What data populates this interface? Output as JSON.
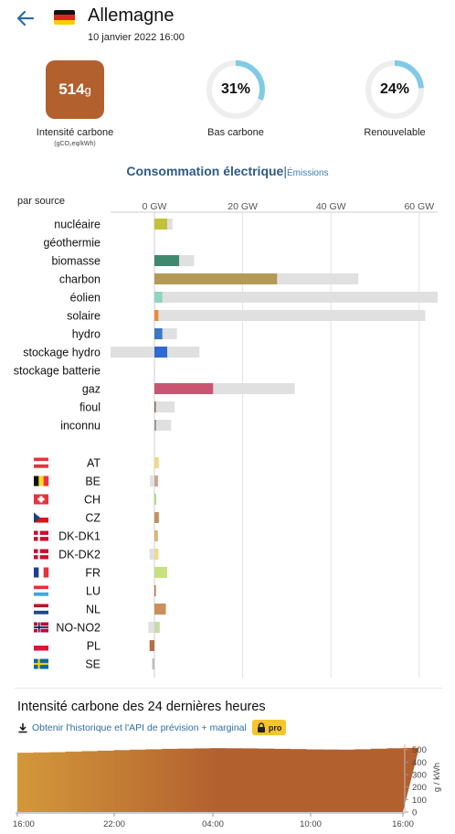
{
  "header": {
    "back_icon": "arrow-left-icon",
    "flag_icon": "flag-germany-icon",
    "country": "Allemagne",
    "datetime": "10 janvier 2022 16:00"
  },
  "stats": {
    "carbon_value": "514",
    "carbon_unit": "g",
    "carbon_label": "Intensité carbone",
    "carbon_unit_label": "(gCO₂eq/kWh)",
    "carbon_color": "#b3602f",
    "low_carbon_value": "31%",
    "low_carbon_fraction": 0.31,
    "low_carbon_label": "Bas carbone",
    "renewable_value": "24%",
    "renewable_fraction": 0.24,
    "renewable_label": "Renouvelable",
    "donut_color": "#7fcbe6",
    "donut_track": "#eeeeee"
  },
  "section": {
    "title": "Consommation électrique",
    "separator": "|",
    "alt_link": "Émissions"
  },
  "chart_data": {
    "type": "bar",
    "title": "Consommation électrique",
    "subtitle": "par source",
    "x_ticks": [
      "0 GW",
      "20 GW",
      "40 GW",
      "60 GW"
    ],
    "x_tick_values": [
      0,
      20,
      40,
      60
    ],
    "xlim": [
      -10.5,
      67
    ],
    "sources": [
      {
        "label": "nucléaire",
        "value": 2.9,
        "capacity": 4.1,
        "color": "#c2c23a"
      },
      {
        "label": "géothermie",
        "value": 0,
        "capacity": 0,
        "color": "#c2a06a"
      },
      {
        "label": "biomasse",
        "value": 5.6,
        "capacity": 9.0,
        "color": "#3f8a6e"
      },
      {
        "label": "charbon",
        "value": 27.8,
        "capacity": 46.2,
        "color": "#b39a55"
      },
      {
        "label": "éolien",
        "value": 1.8,
        "capacity": 67.0,
        "color": "#8ed5c2"
      },
      {
        "label": "solaire",
        "value": 0.9,
        "capacity": 61.4,
        "color": "#f0883a"
      },
      {
        "label": "hydro",
        "value": 1.8,
        "capacity": 5.1,
        "color": "#3c78c4"
      },
      {
        "label": "stockage hydro",
        "value": 2.9,
        "capacity": 10.2,
        "negative_capacity": -10.3,
        "color": "#2e6ad1"
      },
      {
        "label": "stockage batterie",
        "value": 0,
        "capacity": 0.2,
        "color": "#c8b28a"
      },
      {
        "label": "gaz",
        "value": 13.3,
        "capacity": 31.8,
        "color": "#c85672"
      },
      {
        "label": "fioul",
        "value": 0.3,
        "capacity": 4.6,
        "color": "#8a6b52"
      },
      {
        "label": "inconnu",
        "value": 0.4,
        "capacity": 3.8,
        "color": "#9a9a9a"
      }
    ],
    "exchanges": [
      {
        "label": "AT",
        "flag": "flag-austria-icon",
        "value": 1.0,
        "color": "#f1d98a"
      },
      {
        "label": "BE",
        "flag": "flag-belgium-icon",
        "value": 0.8,
        "negative_capacity": -1.0,
        "color": "#c9a58f"
      },
      {
        "label": "CH",
        "flag": "flag-switzerland-icon",
        "value": 0.4,
        "color": "#a8d98a"
      },
      {
        "label": "CZ",
        "flag": "flag-czech-icon",
        "value": 1.0,
        "color": "#c4915e"
      },
      {
        "label": "DK-DK1",
        "flag": "flag-denmark-icon",
        "value": 0.8,
        "color": "#d7b77c"
      },
      {
        "label": "DK-DK2",
        "flag": "flag-denmark-icon",
        "value": 0.9,
        "negative_capacity": -1.1,
        "color": "#f1d98a"
      },
      {
        "label": "FR",
        "flag": "flag-france-icon",
        "value": 2.9,
        "color": "#c7e080"
      },
      {
        "label": "LU",
        "flag": "flag-luxembourg-icon",
        "value": 0.3,
        "color": "#b8704a"
      },
      {
        "label": "NL",
        "flag": "flag-netherlands-icon",
        "value": 2.6,
        "color": "#c9905c"
      },
      {
        "label": "NO-NO2",
        "flag": "flag-norway-icon",
        "value": 1.2,
        "negative_capacity": -1.4,
        "color": "#c5dba8"
      },
      {
        "label": "PL",
        "flag": "flag-poland-icon",
        "value": -1.1,
        "color": "#b0704a"
      },
      {
        "label": "SE",
        "flag": "flag-sweden-icon",
        "value": -0.5,
        "color": "#bdbdbd"
      }
    ]
  },
  "history": {
    "title": "Intensité carbone des 24 dernières heures",
    "download_icon": "download-icon",
    "link_text": "Obtenir l'historique et l'API de prévision + marginal",
    "lock_icon": "lock-icon",
    "pro_label": "pro",
    "y_unit": "g / kWh",
    "y_ticks": [
      "0",
      "100",
      "200",
      "300",
      "400",
      "500"
    ],
    "x_ticks": [
      "16:00",
      "22:00",
      "04:00",
      "10:00",
      "16:00"
    ],
    "values": [
      475,
      478,
      480,
      484,
      488,
      492,
      496,
      500,
      503,
      506,
      508,
      510,
      512,
      511,
      510,
      508,
      506,
      504,
      502,
      501,
      500,
      503,
      507,
      511,
      514
    ],
    "gradient": [
      "#d3983a",
      "#b3602f"
    ]
  }
}
